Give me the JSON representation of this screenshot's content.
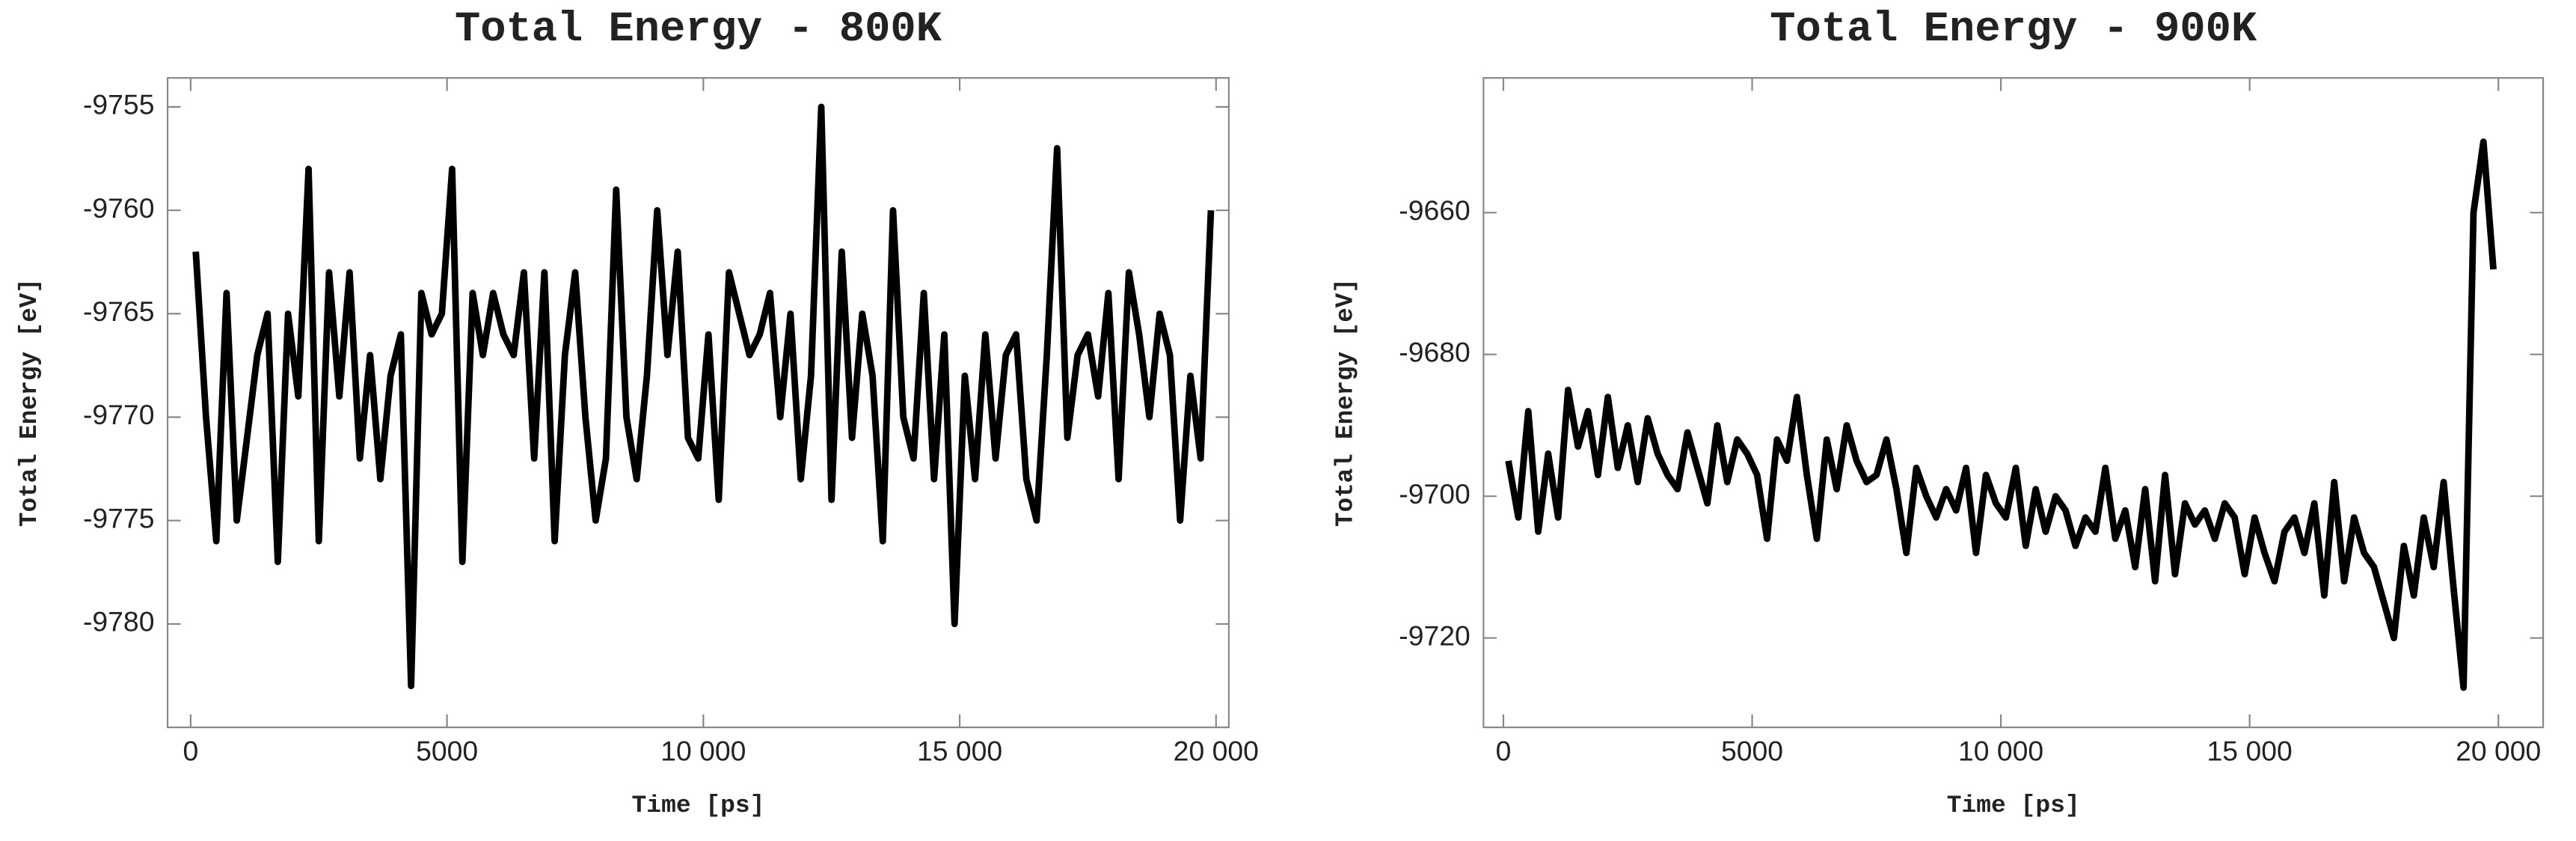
{
  "chart_data": [
    {
      "type": "line",
      "title": "Total Energy - 800K",
      "xlabel": "Time [ps]",
      "ylabel": "Total Energy [eV]",
      "color": "#000000",
      "x": [
        100,
        300,
        500,
        700,
        900,
        1100,
        1300,
        1500,
        1700,
        1900,
        2100,
        2300,
        2500,
        2700,
        2900,
        3100,
        3300,
        3500,
        3700,
        3900,
        4100,
        4300,
        4500,
        4700,
        4900,
        5100,
        5300,
        5500,
        5700,
        5900,
        6100,
        6300,
        6500,
        6700,
        6900,
        7100,
        7300,
        7500,
        7700,
        7900,
        8100,
        8300,
        8500,
        8700,
        8900,
        9100,
        9300,
        9500,
        9700,
        9900,
        10100,
        10300,
        10500,
        10700,
        10900,
        11100,
        11300,
        11500,
        11700,
        11900,
        12100,
        12300,
        12500,
        12700,
        12900,
        13100,
        13300,
        13500,
        13700,
        13900,
        14100,
        14300,
        14500,
        14700,
        14900,
        15100,
        15300,
        15500,
        15700,
        15900,
        16100,
        16300,
        16500,
        16700,
        16900,
        17100,
        17300,
        17500,
        17700,
        17900,
        18100,
        18300,
        18500,
        18700,
        18900,
        19100,
        19300,
        19500,
        19700,
        19900
      ],
      "values": [
        -9762,
        -9770,
        -9776,
        -9764,
        -9775,
        -9771,
        -9767,
        -9765,
        -9777,
        -9765,
        -9769,
        -9758,
        -9776,
        -9763,
        -9769,
        -9763,
        -9772,
        -9767,
        -9773,
        -9768,
        -9766,
        -9783,
        -9764,
        -9766,
        -9765,
        -9758,
        -9777,
        -9764,
        -9767,
        -9764,
        -9766,
        -9767,
        -9763,
        -9772,
        -9763,
        -9776,
        -9767,
        -9763,
        -9770,
        -9775,
        -9772,
        -9759,
        -9770,
        -9773,
        -9768,
        -9760,
        -9767,
        -9762,
        -9771,
        -9772,
        -9766,
        -9774,
        -9763,
        -9765,
        -9767,
        -9766,
        -9764,
        -9770,
        -9765,
        -9773,
        -9768,
        -9755,
        -9774,
        -9762,
        -9771,
        -9765,
        -9768,
        -9776,
        -9760,
        -9770,
        -9772,
        -9764,
        -9773,
        -9766,
        -9780,
        -9768,
        -9773,
        -9766,
        -9772,
        -9767,
        -9766,
        -9773,
        -9775,
        -9767,
        -9757,
        -9771,
        -9767,
        -9766,
        -9769,
        -9764,
        -9773,
        -9763,
        -9766,
        -9770,
        -9765,
        -9767,
        -9775,
        -9768,
        -9772,
        -9760
      ],
      "xlim": [
        -450,
        20250
      ],
      "ylim": [
        -9785,
        -9753.6
      ],
      "xticks": [
        0,
        5000,
        {
          "value": 10000,
          "label": "10 000"
        },
        {
          "value": 15000,
          "label": "15 000"
        },
        {
          "value": 20000,
          "label": "20 000"
        }
      ],
      "yticks": [
        -9780,
        -9775,
        -9770,
        -9765,
        -9760,
        -9755
      ]
    },
    {
      "type": "line",
      "title": "Total Energy - 900K",
      "xlabel": "Time [ps]",
      "ylabel": "Total Energy [eV]",
      "color": "#000000",
      "x": [
        100,
        300,
        500,
        700,
        900,
        1100,
        1300,
        1500,
        1700,
        1900,
        2100,
        2300,
        2500,
        2700,
        2900,
        3100,
        3300,
        3500,
        3700,
        3900,
        4100,
        4300,
        4500,
        4700,
        4900,
        5100,
        5300,
        5500,
        5700,
        5900,
        6100,
        6300,
        6500,
        6700,
        6900,
        7100,
        7300,
        7500,
        7700,
        7900,
        8100,
        8300,
        8500,
        8700,
        8900,
        9100,
        9300,
        9500,
        9700,
        9900,
        10100,
        10300,
        10500,
        10700,
        10900,
        11100,
        11300,
        11500,
        11700,
        11900,
        12100,
        12300,
        12500,
        12700,
        12900,
        13100,
        13300,
        13500,
        13700,
        13900,
        14100,
        14300,
        14500,
        14700,
        14900,
        15100,
        15300,
        15500,
        15700,
        15900,
        16100,
        16300,
        16500,
        16700,
        16900,
        17100,
        17300,
        17500,
        17700,
        17900,
        18100,
        18300,
        18500,
        18700,
        18900,
        19100,
        19300,
        19500,
        19700,
        19900
      ],
      "values": [
        -9695,
        -9703,
        -9688,
        -9705,
        -9694,
        -9703,
        -9685,
        -9693,
        -9688,
        -9697,
        -9686,
        -9696,
        -9690,
        -9698,
        -9689,
        -9694,
        -9697,
        -9699,
        -9691,
        -9696,
        -9701,
        -9690,
        -9698,
        -9692,
        -9694,
        -9697,
        -9706,
        -9692,
        -9695,
        -9686,
        -9697,
        -9706,
        -9692,
        -9699,
        -9690,
        -9695,
        -9698,
        -9697,
        -9692,
        -9699,
        -9708,
        -9696,
        -9700,
        -9703,
        -9699,
        -9702,
        -9696,
        -9708,
        -9697,
        -9701,
        -9703,
        -9696,
        -9707,
        -9699,
        -9705,
        -9700,
        -9702,
        -9707,
        -9703,
        -9705,
        -9696,
        -9706,
        -9702,
        -9710,
        -9699,
        -9712,
        -9697,
        -9711,
        -9701,
        -9704,
        -9702,
        -9706,
        -9701,
        -9703,
        -9711,
        -9703,
        -9708,
        -9712,
        -9705,
        -9703,
        -9708,
        -9701,
        -9714,
        -9698,
        -9712,
        -9703,
        -9708,
        -9710,
        -9715,
        -9720,
        -9707,
        -9714,
        -9703,
        -9710,
        -9698,
        -9713,
        -9727,
        -9660,
        -9650,
        -9668
      ],
      "xlim": [
        -400,
        20900
      ],
      "ylim": [
        -9732.6,
        -9641
      ],
      "xticks": [
        0,
        5000,
        {
          "value": 10000,
          "label": "10 000"
        },
        {
          "value": 15000,
          "label": "15 000"
        },
        {
          "value": 20000,
          "label": "20 000"
        }
      ],
      "yticks": [
        -9720,
        -9700,
        -9680,
        -9660
      ]
    }
  ]
}
